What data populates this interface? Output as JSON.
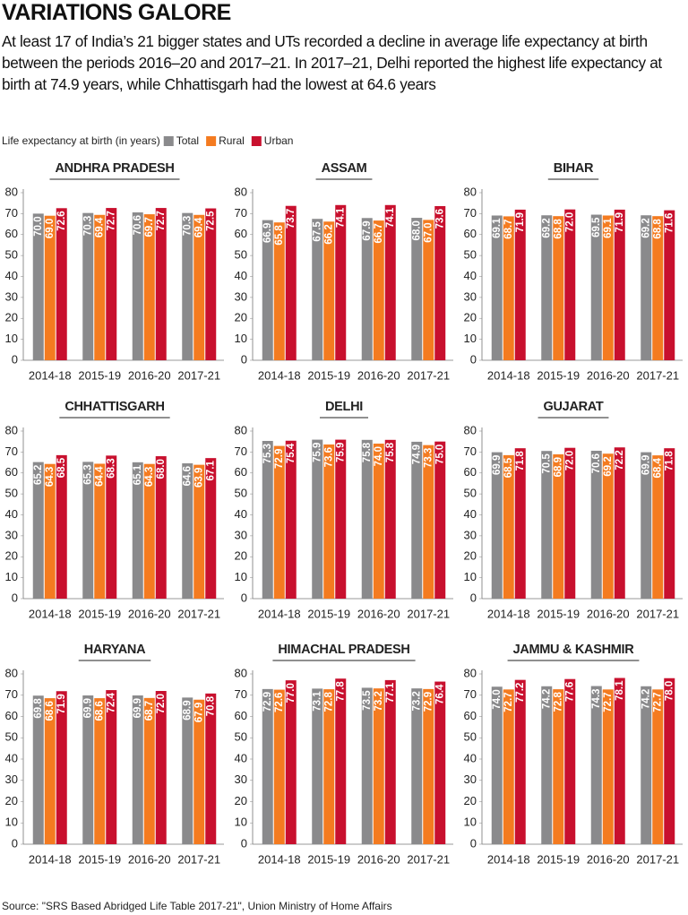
{
  "title": "VARIATIONS GALORE",
  "subtitle": "At least 17 of India’s 21 bigger states and UTs recorded a decline in average life expectancy at birth between the periods 2016–20 and 2017–21. In 2017–21, Delhi reported the highest life expectancy at birth at 74.9 years, while Chhattisgarh had the lowest at 64.6 years",
  "legend_title": "Life expectancy at birth (in years)",
  "source": "Source: \"SRS Based Abridged Life Table 2017-21\", Union Ministry of Home Affairs",
  "chart_data": [
    {
      "type": "bar",
      "title": "ANDHRA PRADESH",
      "categories": [
        "2014-18",
        "2015-19",
        "2016-20",
        "2017-21"
      ],
      "ylim": [
        0,
        80
      ],
      "yticks": [
        0,
        10,
        20,
        30,
        40,
        50,
        60,
        70,
        80
      ],
      "series": [
        {
          "name": "Total",
          "color": "#8a8a8c",
          "values": [
            70.0,
            70.3,
            70.6,
            70.3
          ],
          "value_labels": [
            "70.0",
            "70.3",
            "70.6",
            "70.3"
          ]
        },
        {
          "name": "Rural",
          "color": "#f47b20",
          "values": [
            69.0,
            69.4,
            69.7,
            69.4
          ],
          "value_labels": [
            "69.0",
            "69.4",
            "69.7",
            "69.4"
          ]
        },
        {
          "name": "Urban",
          "color": "#c8102e",
          "values": [
            72.6,
            72.7,
            72.7,
            72.5
          ],
          "value_labels": [
            "72.6",
            "72.7",
            "72.7",
            "72.5"
          ]
        }
      ]
    },
    {
      "type": "bar",
      "title": "ASSAM",
      "categories": [
        "2014-18",
        "2015-19",
        "2016-20",
        "2017-21"
      ],
      "ylim": [
        0,
        80
      ],
      "yticks": [
        0,
        10,
        20,
        30,
        40,
        50,
        60,
        70,
        80
      ],
      "series": [
        {
          "name": "Total",
          "color": "#8a8a8c",
          "values": [
            66.9,
            67.5,
            67.9,
            68.0
          ],
          "value_labels": [
            "66.9",
            "67.5",
            "67.9",
            "68.0"
          ]
        },
        {
          "name": "Rural",
          "color": "#f47b20",
          "values": [
            65.8,
            66.2,
            66.7,
            67.0
          ],
          "value_labels": [
            "65.8",
            "66.2",
            "66.7",
            "67.0"
          ]
        },
        {
          "name": "Urban",
          "color": "#c8102e",
          "values": [
            73.7,
            74.1,
            74.1,
            73.6
          ],
          "value_labels": [
            "73.7",
            "74.1",
            "74.1",
            "73.6"
          ]
        }
      ]
    },
    {
      "type": "bar",
      "title": "BIHAR",
      "categories": [
        "2014-18",
        "2015-19",
        "2016-20",
        "2017-21"
      ],
      "ylim": [
        0,
        80
      ],
      "yticks": [
        0,
        10,
        20,
        30,
        40,
        50,
        60,
        70,
        80
      ],
      "series": [
        {
          "name": "Total",
          "color": "#8a8a8c",
          "values": [
            69.1,
            69.2,
            69.5,
            69.2
          ],
          "value_labels": [
            "69.1",
            "69.2",
            "69.5",
            "69.2"
          ]
        },
        {
          "name": "Rural",
          "color": "#f47b20",
          "values": [
            68.7,
            68.8,
            69.1,
            68.8
          ],
          "value_labels": [
            "68.7",
            "68.8",
            "69.1",
            "68.8"
          ]
        },
        {
          "name": "Urban",
          "color": "#c8102e",
          "values": [
            71.9,
            72.0,
            71.9,
            71.6
          ],
          "value_labels": [
            "71.9",
            "72.0",
            "71.9",
            "71.6"
          ]
        }
      ]
    },
    {
      "type": "bar",
      "title": "CHHATTISGARH",
      "categories": [
        "2014-18",
        "2015-19",
        "2016-20",
        "2017-21"
      ],
      "ylim": [
        0,
        80
      ],
      "yticks": [
        0,
        10,
        20,
        30,
        40,
        50,
        60,
        70,
        80
      ],
      "series": [
        {
          "name": "Total",
          "color": "#8a8a8c",
          "values": [
            65.2,
            65.3,
            65.1,
            64.6
          ],
          "value_labels": [
            "65.2",
            "65.3",
            "65.1",
            "64.6"
          ]
        },
        {
          "name": "Rural",
          "color": "#f47b20",
          "values": [
            64.3,
            64.4,
            64.3,
            63.9
          ],
          "value_labels": [
            "64.3",
            "64.4",
            "64.3",
            "63.9"
          ]
        },
        {
          "name": "Urban",
          "color": "#c8102e",
          "values": [
            68.5,
            68.3,
            68.0,
            67.1
          ],
          "value_labels": [
            "68.5",
            "68.3",
            "68.0",
            "67.1"
          ]
        }
      ]
    },
    {
      "type": "bar",
      "title": "DELHI",
      "categories": [
        "2014-18",
        "2015-19",
        "2016-20",
        "2017-21"
      ],
      "ylim": [
        0,
        80
      ],
      "yticks": [
        0,
        10,
        20,
        30,
        40,
        50,
        60,
        70,
        80
      ],
      "series": [
        {
          "name": "Total",
          "color": "#8a8a8c",
          "values": [
            75.3,
            75.9,
            75.8,
            74.9
          ],
          "value_labels": [
            "75.3",
            "75.9",
            "75.8",
            "74.9"
          ]
        },
        {
          "name": "Rural",
          "color": "#f47b20",
          "values": [
            72.9,
            73.6,
            74.0,
            73.3
          ],
          "value_labels": [
            "72.9",
            "73.6",
            "74.0",
            "73.3"
          ]
        },
        {
          "name": "Urban",
          "color": "#c8102e",
          "values": [
            75.4,
            75.9,
            75.8,
            75.0
          ],
          "value_labels": [
            "75.4",
            "75.9",
            "75.8",
            "75.0"
          ]
        }
      ]
    },
    {
      "type": "bar",
      "title": "GUJARAT",
      "categories": [
        "2014-18",
        "2015-19",
        "2016-20",
        "2017-21"
      ],
      "ylim": [
        0,
        80
      ],
      "yticks": [
        0,
        10,
        20,
        30,
        40,
        50,
        60,
        70,
        80
      ],
      "series": [
        {
          "name": "Total",
          "color": "#8a8a8c",
          "values": [
            69.9,
            70.5,
            70.6,
            69.9
          ],
          "value_labels": [
            "69.9",
            "70.5",
            "70.6",
            "69.9"
          ]
        },
        {
          "name": "Rural",
          "color": "#f47b20",
          "values": [
            68.5,
            68.9,
            69.2,
            68.4
          ],
          "value_labels": [
            "68.5",
            "68.9",
            "69.2",
            "68.4"
          ]
        },
        {
          "name": "Urban",
          "color": "#c8102e",
          "values": [
            71.8,
            72.0,
            72.2,
            71.8
          ],
          "value_labels": [
            "71.8",
            "72.0",
            "72.2",
            "71.8"
          ]
        }
      ]
    },
    {
      "type": "bar",
      "title": "HARYANA",
      "categories": [
        "2014-18",
        "2015-19",
        "2016-20",
        "2017-21"
      ],
      "ylim": [
        0,
        80
      ],
      "yticks": [
        0,
        10,
        20,
        30,
        40,
        50,
        60,
        70,
        80
      ],
      "series": [
        {
          "name": "Total",
          "color": "#8a8a8c",
          "values": [
            69.8,
            69.9,
            69.9,
            68.9
          ],
          "value_labels": [
            "69.8",
            "69.9",
            "69.9",
            "68.9"
          ]
        },
        {
          "name": "Rural",
          "color": "#f47b20",
          "values": [
            68.6,
            68.6,
            68.7,
            67.9
          ],
          "value_labels": [
            "68.6",
            "68.6",
            "68.7",
            "67.9"
          ]
        },
        {
          "name": "Urban",
          "color": "#c8102e",
          "values": [
            71.9,
            72.4,
            72.0,
            70.8
          ],
          "value_labels": [
            "71.9",
            "72.4",
            "72.0",
            "70.8"
          ]
        }
      ]
    },
    {
      "type": "bar",
      "title": "HIMACHAL PRADESH",
      "categories": [
        "2014-18",
        "2015-19",
        "2016-20",
        "2017-21"
      ],
      "ylim": [
        0,
        80
      ],
      "yticks": [
        0,
        10,
        20,
        30,
        40,
        50,
        60,
        70,
        80
      ],
      "series": [
        {
          "name": "Total",
          "color": "#8a8a8c",
          "values": [
            72.9,
            73.1,
            73.5,
            73.2
          ],
          "value_labels": [
            "72.9",
            "73.1",
            "73.5",
            "73.2"
          ]
        },
        {
          "name": "Rural",
          "color": "#f47b20",
          "values": [
            72.6,
            72.8,
            73.2,
            72.9
          ],
          "value_labels": [
            "72.6",
            "72.8",
            "73.2",
            "72.9"
          ]
        },
        {
          "name": "Urban",
          "color": "#c8102e",
          "values": [
            77.0,
            77.8,
            77.1,
            76.4
          ],
          "value_labels": [
            "77.0",
            "77.8",
            "77.1",
            "76.4"
          ]
        }
      ]
    },
    {
      "type": "bar",
      "title": "JAMMU & KASHMIR",
      "categories": [
        "2014-18",
        "2015-19",
        "2016-20",
        "2017-21"
      ],
      "ylim": [
        0,
        80
      ],
      "yticks": [
        0,
        10,
        20,
        30,
        40,
        50,
        60,
        70,
        80
      ],
      "series": [
        {
          "name": "Total",
          "color": "#8a8a8c",
          "values": [
            74.0,
            74.2,
            74.3,
            74.2
          ],
          "value_labels": [
            "74.0",
            "74.2",
            "74.3",
            "74.2"
          ]
        },
        {
          "name": "Rural",
          "color": "#f47b20",
          "values": [
            72.7,
            72.8,
            72.7,
            72.7
          ],
          "value_labels": [
            "72.7",
            "72.8",
            "72.7",
            "72.7"
          ]
        },
        {
          "name": "Urban",
          "color": "#c8102e",
          "values": [
            77.2,
            77.6,
            78.1,
            78.0
          ],
          "value_labels": [
            "77.2",
            "77.6",
            "78.1",
            "78.0"
          ]
        }
      ]
    }
  ]
}
